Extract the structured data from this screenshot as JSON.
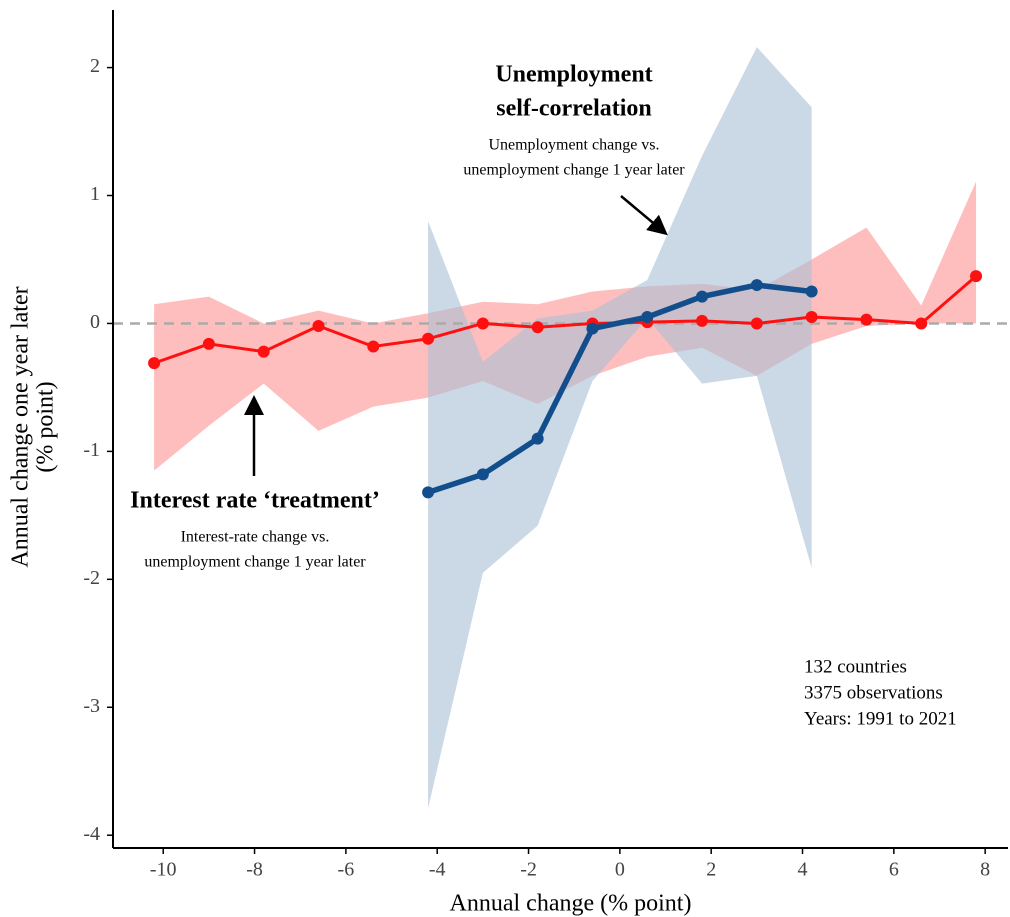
{
  "chart_data": {
    "type": "line",
    "xlabel": "Annual change (% point)",
    "ylabel": [
      "Annual change one year later",
      "(% point)"
    ],
    "xlim": [
      -11.1,
      8.5
    ],
    "ylim": [
      -4.1,
      2.45
    ],
    "xticks": [
      -10,
      -8,
      -6,
      -4,
      -2,
      0,
      2,
      4,
      6,
      8
    ],
    "yticks": [
      -4,
      -3,
      -2,
      -1,
      0,
      1,
      2
    ],
    "reference_line": 0,
    "series": [
      {
        "color": "#ff1010",
        "band_color": "#ffb3b3",
        "x": [
          -10.2,
          -9,
          -7.8,
          -6.6,
          -5.4,
          -4.2,
          -3,
          -1.8,
          -0.6,
          0.6,
          1.8,
          3,
          4.2,
          5.4,
          6.6,
          7.8
        ],
        "values": [
          -0.31,
          -0.16,
          -0.22,
          -0.02,
          -0.18,
          -0.12,
          0,
          -0.03,
          0,
          0.01,
          0.02,
          0,
          0.05,
          0.03,
          0,
          0.37
        ],
        "upper": [
          0.15,
          0.21,
          0,
          0.1,
          0,
          0.08,
          0.17,
          0.15,
          0.25,
          0.29,
          0.31,
          0.26,
          0.5,
          0.75,
          0.14,
          1.11
        ],
        "lower": [
          -1.15,
          -0.8,
          -0.47,
          -0.84,
          -0.65,
          -0.58,
          -0.45,
          -0.63,
          -0.41,
          -0.26,
          -0.19,
          -0.41,
          -0.16,
          -0.02,
          0,
          0
        ]
      },
      {
        "color": "#124e8c",
        "band_color": "#a9bfd6",
        "x": [
          -4.2,
          -3,
          -1.8,
          -0.6,
          0.6,
          1.8,
          3,
          4.2
        ],
        "values": [
          -1.32,
          -1.18,
          -0.9,
          -0.04,
          0.05,
          0.21,
          0.3,
          0.25
        ],
        "upper": [
          0.8,
          -0.3,
          0.04,
          0.1,
          0.34,
          1.31,
          2.16,
          1.69
        ],
        "lower": [
          -3.79,
          -1.95,
          -1.58,
          -0.45,
          0.04,
          -0.47,
          -0.41,
          -1.91
        ]
      }
    ],
    "annotations": [
      {
        "title": [
          "Unemployment",
          "self-correlation"
        ],
        "text": [
          "Unemployment change vs.",
          "unemployment change 1 year later"
        ]
      },
      {
        "title": [
          "Interest rate ‘treatment’"
        ],
        "text": [
          "Interest-rate change vs.",
          "unemployment change 1 year later"
        ]
      }
    ],
    "note": [
      "132 countries",
      "3375 observations",
      "Years: 1991 to 2021"
    ]
  }
}
